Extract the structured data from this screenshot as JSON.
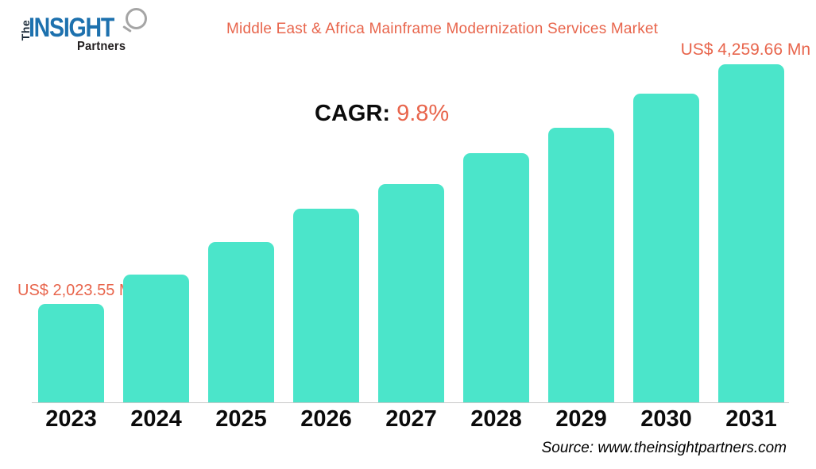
{
  "logo": {
    "the": "The",
    "insight": "INSIGHT",
    "partners": "Partners"
  },
  "header": {
    "title": "Middle East & Africa Mainframe Modernization Services Market"
  },
  "annotations": {
    "cagr_label": "CAGR:",
    "cagr_value": "9.8%",
    "first_bar_label": "US$ 2,023.55 Mn",
    "last_bar_label": "US$ 4,259.66 Mn"
  },
  "footer": {
    "source": "Source: www.theinsightpartners.com"
  },
  "colors": {
    "bar": "#4BE5CA",
    "accent": "#E8654C",
    "logo_blue": "#1D71AE"
  },
  "chart_data": {
    "type": "bar",
    "title": "Middle East & Africa Mainframe Modernization Services Market",
    "unit": "US$ Mn",
    "cagr": "9.8%",
    "categories": [
      "2023",
      "2024",
      "2025",
      "2026",
      "2027",
      "2028",
      "2029",
      "2030",
      "2031"
    ],
    "values": [
      2023.55,
      2297,
      2601,
      2912,
      3141,
      3430,
      3667,
      3985,
      4259.66
    ],
    "point_labels": [
      "US$ 2,023.55 Mn",
      null,
      null,
      null,
      null,
      null,
      null,
      null,
      "US$ 4,259.66 Mn"
    ],
    "value_source": "2023 and 2031 values labeled on chart; intermediate values estimated from bar heights",
    "xlabel": "",
    "ylabel": "",
    "grid": false,
    "legend": false,
    "axis_values_shown": false
  }
}
